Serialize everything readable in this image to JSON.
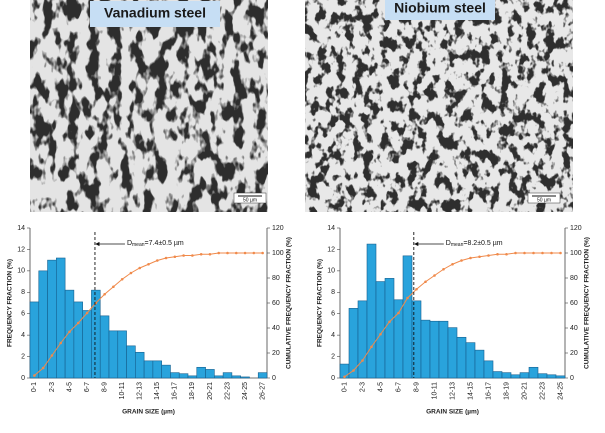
{
  "panels": [
    {
      "title": "Vanadium steel",
      "scale_bar": "50 µm"
    },
    {
      "title": "Niobium steel",
      "scale_bar": "50 µm"
    }
  ],
  "chart_data": [
    {
      "type": "bar",
      "ylabel": "FREQUENCY FRACTION (%)",
      "y2label": "CUMULATIVE FREQUENCY FRACTION (%)",
      "xlabel": "GRAIN SIZE (µm)",
      "categories": [
        "0-1",
        null,
        "2-3",
        null,
        "4-5",
        null,
        "6-7",
        null,
        "8-9",
        null,
        "10-11",
        null,
        "12-13",
        null,
        "14-15",
        null,
        "16-17",
        null,
        "18-19",
        null,
        "20-21",
        null,
        "22-23",
        null,
        "24-25",
        null,
        "26-27"
      ],
      "series": [
        {
          "color": "#29a3dc",
          "values": [
            7.1,
            10,
            11,
            11.2,
            8.2,
            7.1,
            6.3,
            8.2,
            5.8,
            4.4,
            4.4,
            3.0,
            2.4,
            1.6,
            1.6,
            1.2,
            0.5,
            0.4,
            0.2,
            1.0,
            0.8,
            0.2,
            0.5,
            0.2,
            0.1,
            0,
            0.5
          ]
        },
        {
          "color": "#f08a4b",
          "axis": "y2",
          "type": "line",
          "values": [
            2,
            8,
            18,
            28,
            37,
            44,
            52,
            60,
            67,
            73,
            79,
            84,
            88,
            91,
            94,
            96,
            97,
            98,
            98,
            99,
            99,
            100,
            100,
            100,
            100,
            100,
            100
          ]
        }
      ],
      "ylim": [
        0,
        14
      ],
      "yticks": [
        0,
        2,
        4,
        6,
        8,
        10,
        12,
        14
      ],
      "y2lim": [
        0,
        120
      ],
      "y2ticks": [
        0,
        20,
        40,
        60,
        80,
        100,
        120
      ],
      "mean": 7.4,
      "annotation": {
        "prefix": "D",
        "sub": "mean",
        "suffix": "=7.4±0.5 µm"
      }
    },
    {
      "type": "bar",
      "ylabel": "FREQUENCY FRACTION (%)",
      "y2label": "CUMULATIVE FREQUENCY FRACTION (%)",
      "xlabel": "GRAIN SIZE (µm)",
      "categories": [
        "0-1",
        null,
        "2-3",
        null,
        "4-5",
        null,
        "6-7",
        null,
        "8-9",
        null,
        "10-11",
        null,
        "12-13",
        null,
        "14-15",
        null,
        "16-17",
        null,
        "18-19",
        null,
        "20-21",
        null,
        "22-23",
        null,
        "24-25"
      ],
      "series": [
        {
          "color": "#29a3dc",
          "values": [
            1.3,
            6.5,
            7.2,
            12.5,
            9.0,
            9.3,
            7.3,
            11.4,
            7.2,
            5.4,
            5.3,
            5.3,
            4.7,
            3.8,
            3.3,
            2.6,
            1.6,
            0.6,
            0.5,
            0.3,
            0.5,
            1.0,
            0.4,
            0.3,
            0.2
          ]
        },
        {
          "color": "#f08a4b",
          "axis": "y2",
          "type": "line",
          "values": [
            1,
            6,
            14,
            25,
            35,
            45,
            52,
            64,
            71,
            77,
            82,
            87,
            91,
            94,
            96,
            97,
            98,
            99,
            99,
            100,
            100,
            100,
            100,
            100,
            100
          ]
        }
      ],
      "ylim": [
        0,
        14
      ],
      "yticks": [
        0,
        2,
        4,
        6,
        8,
        10,
        12,
        14
      ],
      "y2lim": [
        0,
        120
      ],
      "y2ticks": [
        0,
        20,
        40,
        60,
        80,
        100,
        120
      ],
      "mean": 8.2,
      "annotation": {
        "prefix": "D",
        "sub": "mean",
        "suffix": "=8.2±0.5 µm"
      }
    }
  ]
}
